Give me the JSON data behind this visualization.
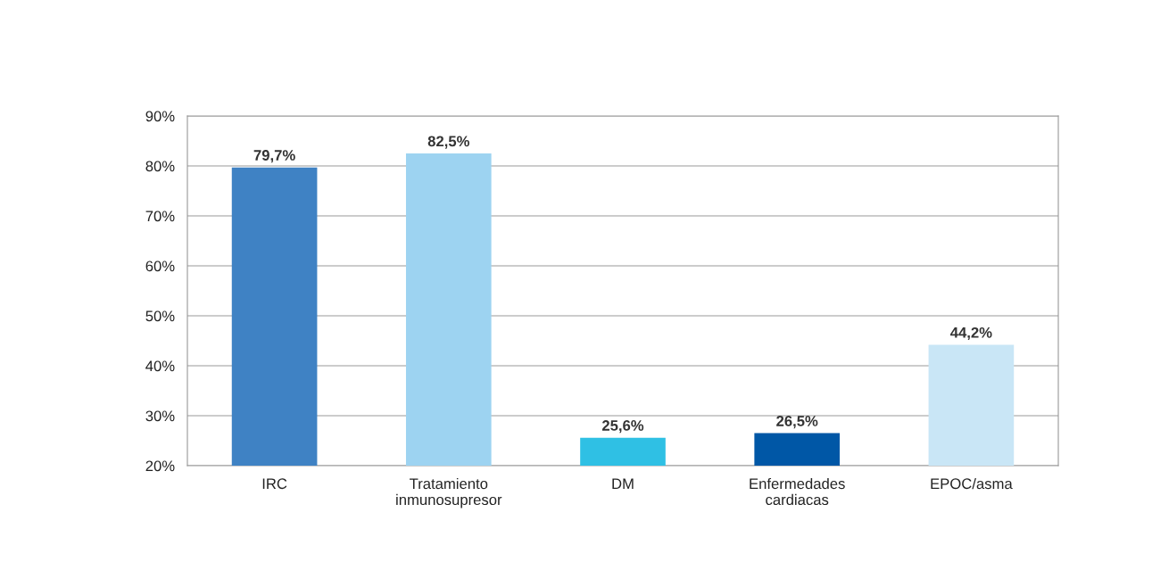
{
  "chart_data": {
    "type": "bar",
    "categories": [
      "IRC",
      "Tratamiento\ninmunosupresor",
      "DM",
      "Enfermedades\ncardiacas",
      "EPOC/asma"
    ],
    "values": [
      79.7,
      82.5,
      25.6,
      26.5,
      44.2
    ],
    "value_labels": [
      "79,7%",
      "82,5%",
      "25,6%",
      "26,5%",
      "44,2%"
    ],
    "colors": [
      "#3f82c4",
      "#9dd3f1",
      "#2fc0e4",
      "#0057a6",
      "#c9e6f6"
    ],
    "ylim": [
      20,
      90
    ],
    "yticks": [
      {
        "value": 20,
        "label": "20%"
      },
      {
        "value": 30,
        "label": "30%"
      },
      {
        "value": 40,
        "label": "40%"
      },
      {
        "value": 50,
        "label": "50%"
      },
      {
        "value": 60,
        "label": "60%"
      },
      {
        "value": 70,
        "label": "70%"
      },
      {
        "value": 80,
        "label": "80%"
      },
      {
        "value": 90,
        "label": "90%"
      }
    ],
    "grid": "y"
  }
}
